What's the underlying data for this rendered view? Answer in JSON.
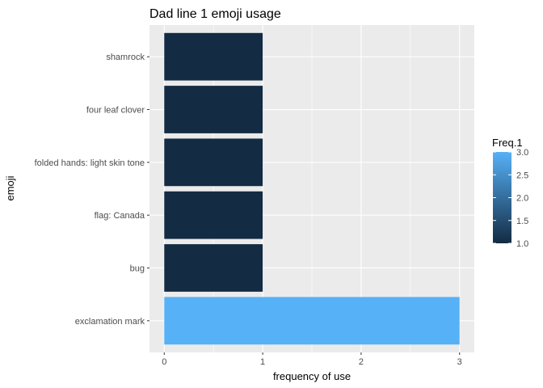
{
  "chart_data": {
    "type": "bar",
    "orientation": "horizontal",
    "title": "Dad line 1 emoji usage",
    "xlabel": "frequency of use",
    "ylabel": "emoji",
    "categories": [
      "exclamation mark",
      "bug",
      "flag: Canada",
      "folded hands: light skin tone",
      "four leaf clover",
      "shamrock"
    ],
    "values": [
      3,
      1,
      1,
      1,
      1,
      1
    ],
    "xlim": [
      0,
      3
    ],
    "xticks": [
      "0",
      "1",
      "2",
      "3"
    ],
    "grid": true,
    "legend": {
      "title": "Freq.1",
      "placement": "right",
      "range": [
        1,
        3
      ],
      "ticks": [
        "1.0",
        "1.5",
        "2.0",
        "2.5",
        "3.0"
      ],
      "low_color": "#132B43",
      "high_color": "#56B1F7"
    }
  },
  "colors": {
    "panel_background": "#EBEBEB",
    "grid_major": "#FFFFFF"
  }
}
